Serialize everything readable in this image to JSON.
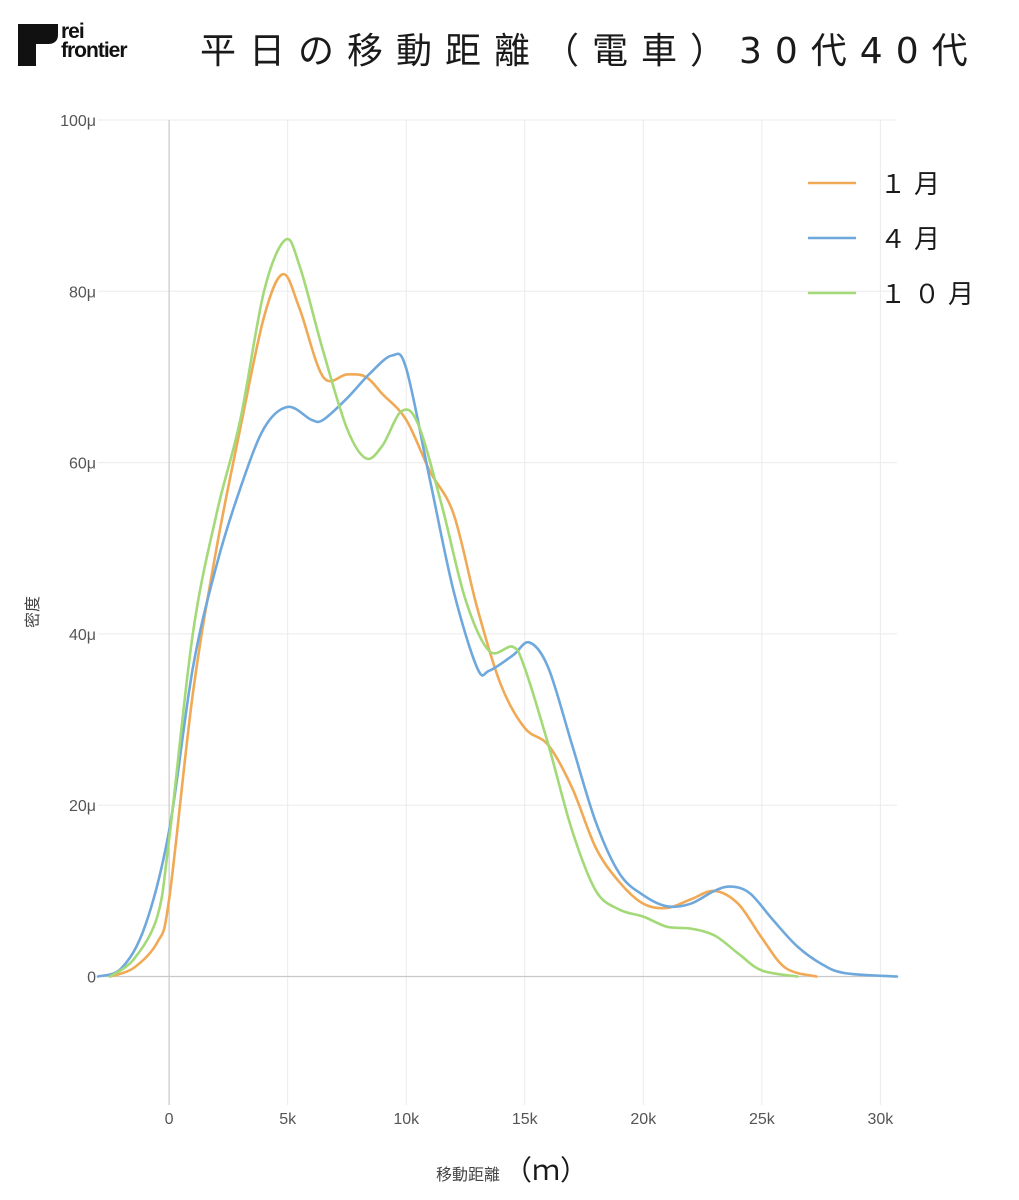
{
  "logo": {
    "line1": "rei",
    "line2": "frontier",
    "mark_color": "#111111"
  },
  "chart_data": {
    "type": "line",
    "title": "平日の移動距離（電車）30代40代",
    "xlabel": "移動距離",
    "xlabel_unit": "（ｍ）",
    "ylabel": "密度",
    "xlim": [
      -3000,
      30700
    ],
    "ylim": [
      -1.5e-05,
      0.0001
    ],
    "x_ticks": [
      0,
      5000,
      10000,
      15000,
      20000,
      25000,
      30000
    ],
    "x_tick_labels": [
      "0",
      "5k",
      "10k",
      "15k",
      "20k",
      "25k",
      "30k"
    ],
    "y_ticks": [
      0,
      2e-05,
      4e-05,
      6e-05,
      8e-05,
      0.0001
    ],
    "y_tick_labels": [
      "0",
      "20μ",
      "40μ",
      "60μ",
      "80μ",
      "100μ"
    ],
    "grid": true,
    "legend_position": "top-right",
    "series": [
      {
        "name": "１月",
        "color": "#f0a955",
        "x": [
          -2500,
          -1500,
          -500,
          0,
          1000,
          2000,
          3000,
          4000,
          4800,
          5500,
          6500,
          7500,
          8300,
          9000,
          10000,
          11000,
          12000,
          13000,
          14000,
          15000,
          16000,
          17000,
          18000,
          19000,
          20000,
          21000,
          22000,
          23000,
          24000,
          25000,
          26000,
          27300
        ],
        "y": [
          0.0,
          1e-06,
          4e-06,
          9e-06,
          3.3e-05,
          5e-05,
          6.4e-05,
          7.7e-05,
          8.2e-05,
          7.8e-05,
          7e-05,
          7.03e-05,
          7e-05,
          6.8e-05,
          6.5e-05,
          5.9e-05,
          5.4e-05,
          4.3e-05,
          3.4e-05,
          2.9e-05,
          2.7e-05,
          2.2e-05,
          1.5e-05,
          1.1e-05,
          8.5e-06,
          8e-06,
          9e-06,
          1e-05,
          8.5e-06,
          4.5e-06,
          1e-06,
          0.0
        ]
      },
      {
        "name": "４月",
        "color": "#6fa8dc",
        "x": [
          -3000,
          -2000,
          -1000,
          0,
          1000,
          2000,
          3000,
          4000,
          5000,
          6000,
          6500,
          7500,
          8500,
          9400,
          10000,
          11000,
          12000,
          13000,
          13500,
          14500,
          15200,
          16000,
          17000,
          18000,
          19000,
          20000,
          21000,
          22000,
          23000,
          23700,
          24500,
          25500,
          26500,
          27500,
          28500,
          30700
        ],
        "y": [
          0.0,
          1e-06,
          6e-06,
          1.7e-05,
          3.6e-05,
          4.8e-05,
          5.7e-05,
          6.4e-05,
          6.65e-05,
          6.5e-05,
          6.5e-05,
          6.75e-05,
          7.05e-05,
          7.25e-05,
          7.1e-05,
          5.8e-05,
          4.5e-05,
          3.6e-05,
          3.57e-05,
          3.75e-05,
          3.9e-05,
          3.6e-05,
          2.7e-05,
          1.8e-05,
          1.2e-05,
          9.5e-06,
          8.2e-06,
          8.5e-06,
          1e-05,
          1.05e-05,
          9.7e-06,
          6.5e-06,
          3.5e-06,
          1.5e-06,
          4e-07,
          0.0
        ]
      },
      {
        "name": "１０月",
        "color": "#a3d977",
        "x": [
          -2500,
          -1500,
          -500,
          0,
          1000,
          2000,
          3000,
          4000,
          4900,
          5500,
          6500,
          7500,
          8300,
          9000,
          9800,
          10500,
          11500,
          12500,
          13500,
          14500,
          15000,
          16000,
          17000,
          18000,
          19000,
          20000,
          21000,
          22000,
          23000,
          24000,
          25000,
          26500
        ],
        "y": [
          0.0,
          2e-06,
          7e-06,
          1.6e-05,
          4e-05,
          5.4e-05,
          6.5e-05,
          8e-05,
          8.6e-05,
          8.3e-05,
          7.3e-05,
          6.4e-05,
          6.05e-05,
          6.2e-05,
          6.6e-05,
          6.45e-05,
          5.5e-05,
          4.4e-05,
          3.8e-05,
          3.85e-05,
          3.6e-05,
          2.7e-05,
          1.7e-05,
          1e-05,
          7.8e-06,
          7e-06,
          5.8e-06,
          5.6e-06,
          4.8e-06,
          2.7e-06,
          7e-07,
          0.0
        ]
      }
    ]
  }
}
